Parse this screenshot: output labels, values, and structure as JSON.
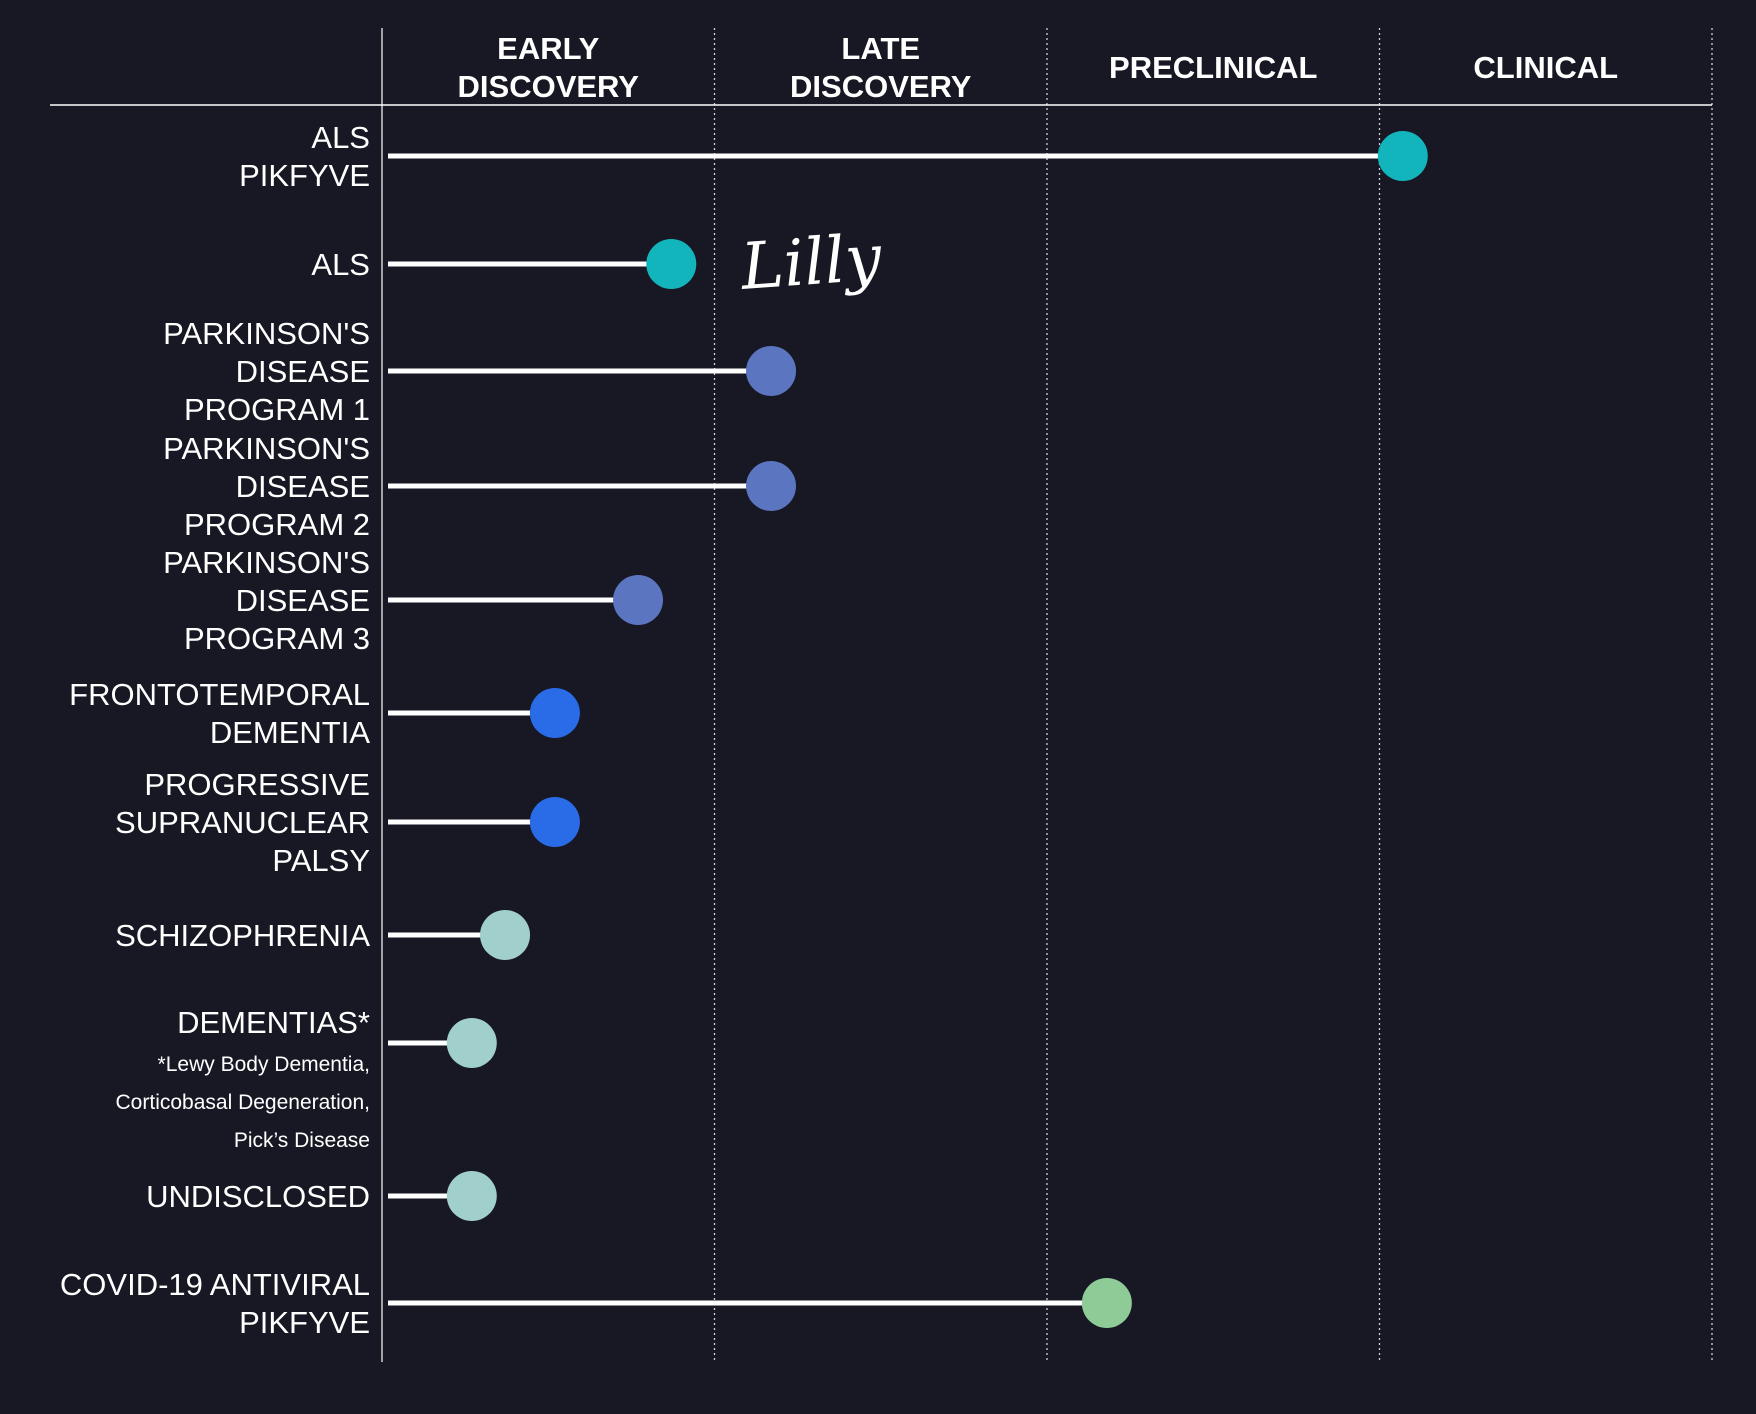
{
  "colors": {
    "background": "#171824",
    "line": "#ffffff",
    "grid": "#d0d0d0"
  },
  "chart_data": {
    "type": "pipeline",
    "stages": [
      [
        "EARLY",
        "DISCOVERY"
      ],
      [
        "LATE",
        "DISCOVERY"
      ],
      [
        "PRECLINICAL"
      ],
      [
        "CLINICAL"
      ]
    ],
    "progress_unit": "stages completed (0 to 4)",
    "range": [
      0,
      4
    ],
    "programs": [
      {
        "label": [
          "ALS",
          "PIKFYVE"
        ],
        "progress": 3.07,
        "color": "#13b5bd"
      },
      {
        "label": [
          "ALS"
        ],
        "progress": 0.87,
        "color": "#13b5bd",
        "partner": "Lilly"
      },
      {
        "label": [
          "PARKINSON'S",
          "DISEASE",
          "PROGRAM 1"
        ],
        "progress": 1.17,
        "color": "#5b75c0"
      },
      {
        "label": [
          "PARKINSON'S",
          "DISEASE",
          "PROGRAM 2"
        ],
        "progress": 1.17,
        "color": "#5b75c0"
      },
      {
        "label": [
          "PARKINSON'S",
          "DISEASE",
          "PROGRAM 3"
        ],
        "progress": 0.77,
        "color": "#5b75c0"
      },
      {
        "label": [
          "FRONTOTEMPORAL",
          "DEMENTIA"
        ],
        "progress": 0.52,
        "color": "#2a6ce8"
      },
      {
        "label": [
          "PROGRESSIVE",
          "SUPRANUCLEAR",
          "PALSY"
        ],
        "progress": 0.52,
        "color": "#2a6ce8"
      },
      {
        "label": [
          "SCHIZOPHRENIA"
        ],
        "progress": 0.37,
        "color": "#a1cfcb"
      },
      {
        "label": [
          "DEMENTIAS*"
        ],
        "note": [
          "*Lewy Body Dementia,",
          "Corticobasal Degeneration,",
          "Pick’s Disease"
        ],
        "progress": 0.27,
        "color": "#a1cfcb"
      },
      {
        "label": [
          "UNDISCLOSED"
        ],
        "progress": 0.27,
        "color": "#a1cfcb"
      },
      {
        "label": [
          "COVID-19 ANTIVIRAL",
          "PIKFYVE"
        ],
        "progress": 2.18,
        "color": "#8fcb97"
      }
    ]
  }
}
